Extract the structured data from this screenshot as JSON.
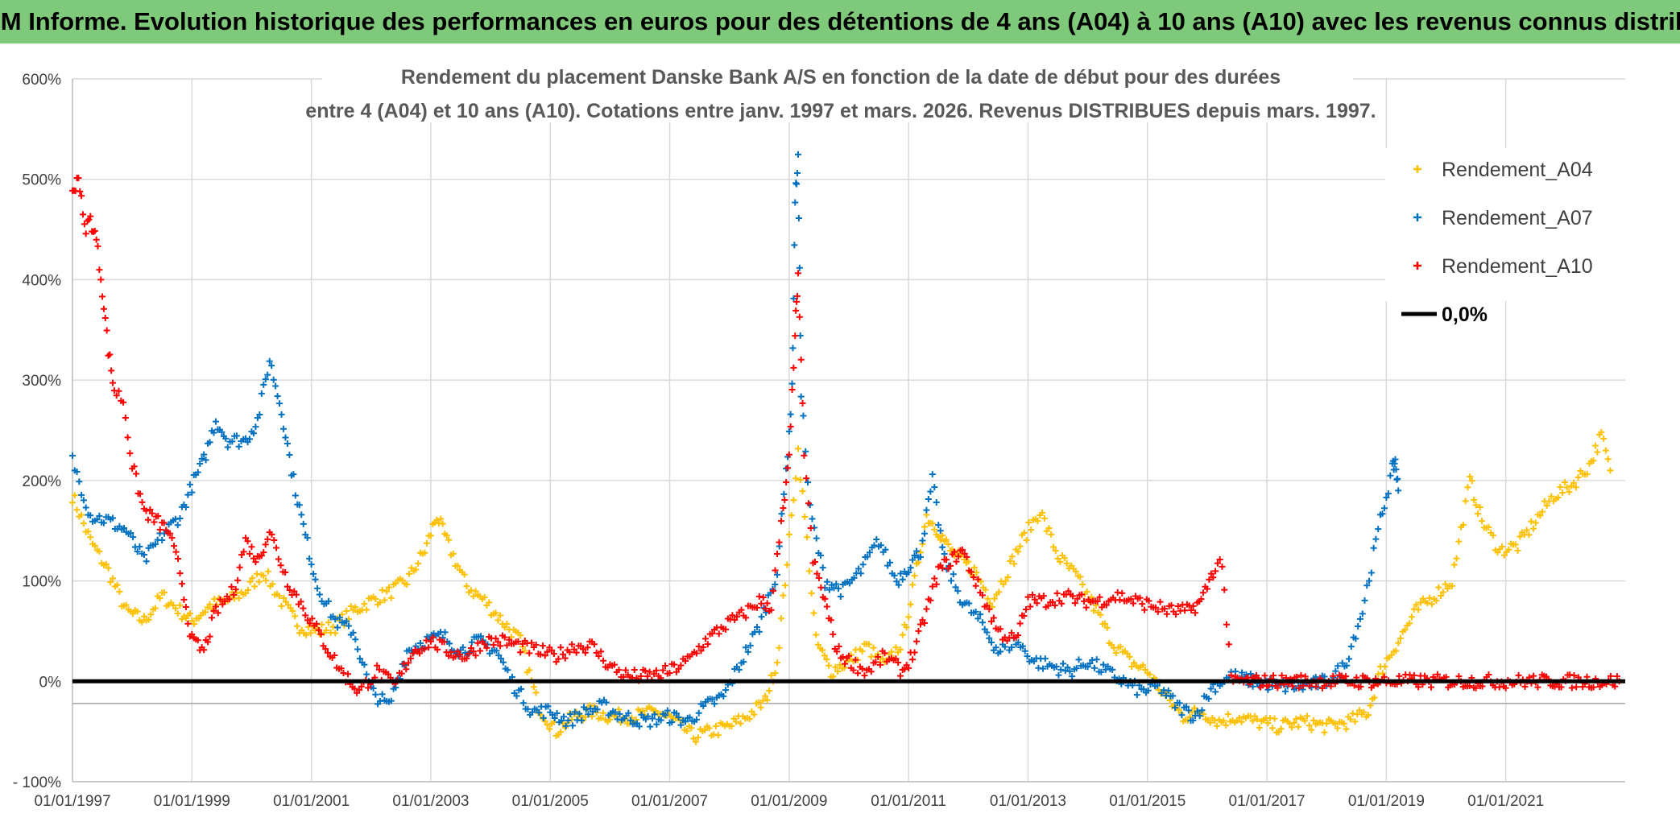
{
  "header": {
    "title": "ADAM Informe. Evolution historique des performances en euros pour des détentions de 4 ans (A04) à 10 ans (A10) avec les revenus connus distribués"
  },
  "chart_data": {
    "type": "scatter",
    "title_line1": "Rendement du placement Danske Bank A/S en fonction de la date de début pour des durées",
    "title_line2": "entre 4 (A04) et 10 ans (A10). Cotations entre janv. 1997 et mars. 2026. Revenus DISTRIBUES depuis mars. 1997.",
    "xlabel": "",
    "ylabel": "",
    "x_range": [
      1997.0,
      2023.0
    ],
    "ylim": [
      -100,
      600
    ],
    "y_ticks": [
      -100,
      0,
      100,
      200,
      300,
      400,
      500,
      600
    ],
    "y_tick_labels": [
      "- 100%",
      "0%",
      "100%",
      "200%",
      "300%",
      "400%",
      "500%",
      "600%"
    ],
    "x_ticks": [
      1997,
      1999,
      2001,
      2003,
      2005,
      2007,
      2009,
      2011,
      2013,
      2015,
      2017,
      2019,
      2021
    ],
    "x_tick_labels": [
      "01/01/1997",
      "01/01/1999",
      "01/01/2001",
      "01/01/2003",
      "01/01/2005",
      "01/01/2007",
      "01/01/2009",
      "01/01/2011",
      "01/01/2013",
      "01/01/2015",
      "01/01/2017",
      "01/01/2019",
      "01/01/2021"
    ],
    "legend_position": "top-right",
    "series": [
      {
        "name": "Rendement_A04",
        "color": "#ffc000",
        "marker": "plus",
        "points": [
          [
            1997.0,
            185
          ],
          [
            1997.3,
            140
          ],
          [
            1997.6,
            110
          ],
          [
            1997.9,
            70
          ],
          [
            1998.2,
            60
          ],
          [
            1998.5,
            85
          ],
          [
            1998.8,
            70
          ],
          [
            1999.0,
            60
          ],
          [
            1999.3,
            75
          ],
          [
            1999.6,
            80
          ],
          [
            1999.9,
            90
          ],
          [
            2000.2,
            110
          ],
          [
            2000.5,
            80
          ],
          [
            2000.8,
            55
          ],
          [
            2001.1,
            50
          ],
          [
            2001.4,
            55
          ],
          [
            2001.7,
            70
          ],
          [
            2002.0,
            80
          ],
          [
            2002.3,
            88
          ],
          [
            2002.6,
            100
          ],
          [
            2002.9,
            130
          ],
          [
            2003.1,
            165
          ],
          [
            2003.3,
            135
          ],
          [
            2003.6,
            95
          ],
          [
            2003.9,
            80
          ],
          [
            2004.2,
            60
          ],
          [
            2004.5,
            40
          ],
          [
            2004.8,
            -25
          ],
          [
            2005.1,
            -50
          ],
          [
            2005.4,
            -35
          ],
          [
            2005.7,
            -30
          ],
          [
            2006.0,
            -35
          ],
          [
            2006.4,
            -35
          ],
          [
            2006.8,
            -30
          ],
          [
            2007.1,
            -40
          ],
          [
            2007.4,
            -55
          ],
          [
            2007.7,
            -50
          ],
          [
            2008.0,
            -45
          ],
          [
            2008.3,
            -35
          ],
          [
            2008.6,
            -20
          ],
          [
            2008.8,
            20
          ],
          [
            2009.0,
            140
          ],
          [
            2009.15,
            230
          ],
          [
            2009.3,
            140
          ],
          [
            2009.45,
            40
          ],
          [
            2009.7,
            10
          ],
          [
            2010.0,
            20
          ],
          [
            2010.3,
            35
          ],
          [
            2010.6,
            15
          ],
          [
            2010.9,
            40
          ],
          [
            2011.1,
            100
          ],
          [
            2011.3,
            165
          ],
          [
            2011.5,
            150
          ],
          [
            2011.7,
            130
          ],
          [
            2011.9,
            120
          ],
          [
            2012.1,
            110
          ],
          [
            2012.4,
            80
          ],
          [
            2012.7,
            115
          ],
          [
            2012.9,
            140
          ],
          [
            2013.2,
            170
          ],
          [
            2013.5,
            125
          ],
          [
            2013.8,
            105
          ],
          [
            2014.1,
            75
          ],
          [
            2014.4,
            40
          ],
          [
            2014.7,
            20
          ],
          [
            2015.0,
            10
          ],
          [
            2015.3,
            -15
          ],
          [
            2015.6,
            -35
          ],
          [
            2015.9,
            -30
          ],
          [
            2016.2,
            -40
          ],
          [
            2016.5,
            -35
          ],
          [
            2016.8,
            -40
          ],
          [
            2017.2,
            -45
          ],
          [
            2017.6,
            -40
          ],
          [
            2018.0,
            -45
          ],
          [
            2018.4,
            -40
          ],
          [
            2018.7,
            -30
          ],
          [
            2018.9,
            10
          ],
          [
            2019.2,
            40
          ],
          [
            2019.5,
            70
          ],
          [
            2019.8,
            85
          ],
          [
            2020.1,
            100
          ],
          [
            2020.4,
            200
          ],
          [
            2020.6,
            160
          ],
          [
            2020.9,
            130
          ],
          [
            2021.2,
            135
          ],
          [
            2021.5,
            160
          ],
          [
            2021.8,
            185
          ],
          [
            2022.1,
            195
          ],
          [
            2022.4,
            215
          ],
          [
            2022.6,
            245
          ],
          [
            2022.75,
            210
          ]
        ]
      },
      {
        "name": "Rendement_A07",
        "color": "#0070c0",
        "marker": "plus",
        "points": [
          [
            1997.0,
            220
          ],
          [
            1997.3,
            165
          ],
          [
            1997.6,
            160
          ],
          [
            1997.9,
            150
          ],
          [
            1998.2,
            120
          ],
          [
            1998.5,
            145
          ],
          [
            1998.8,
            165
          ],
          [
            1999.0,
            195
          ],
          [
            1999.2,
            220
          ],
          [
            1999.4,
            260
          ],
          [
            1999.6,
            240
          ],
          [
            1999.9,
            240
          ],
          [
            2000.1,
            260
          ],
          [
            2000.3,
            320
          ],
          [
            2000.5,
            270
          ],
          [
            2000.7,
            200
          ],
          [
            2000.9,
            145
          ],
          [
            2001.1,
            95
          ],
          [
            2001.4,
            60
          ],
          [
            2001.7,
            50
          ],
          [
            2002.0,
            -10
          ],
          [
            2002.3,
            -25
          ],
          [
            2002.6,
            30
          ],
          [
            2002.9,
            40
          ],
          [
            2003.2,
            45
          ],
          [
            2003.5,
            30
          ],
          [
            2003.8,
            40
          ],
          [
            2004.1,
            30
          ],
          [
            2004.4,
            -5
          ],
          [
            2004.7,
            -30
          ],
          [
            2005.0,
            -30
          ],
          [
            2005.3,
            -40
          ],
          [
            2005.6,
            -30
          ],
          [
            2005.9,
            -25
          ],
          [
            2006.2,
            -35
          ],
          [
            2006.6,
            -40
          ],
          [
            2007.0,
            -35
          ],
          [
            2007.3,
            -40
          ],
          [
            2007.6,
            -25
          ],
          [
            2007.9,
            -15
          ],
          [
            2008.2,
            20
          ],
          [
            2008.5,
            55
          ],
          [
            2008.8,
            110
          ],
          [
            2008.95,
            210
          ],
          [
            2009.05,
            290
          ],
          [
            2009.1,
            480
          ],
          [
            2009.15,
            520
          ],
          [
            2009.2,
            290
          ],
          [
            2009.35,
            170
          ],
          [
            2009.6,
            100
          ],
          [
            2009.9,
            90
          ],
          [
            2010.2,
            110
          ],
          [
            2010.5,
            140
          ],
          [
            2010.8,
            100
          ],
          [
            2011.0,
            115
          ],
          [
            2011.2,
            130
          ],
          [
            2011.4,
            200
          ],
          [
            2011.6,
            120
          ],
          [
            2011.9,
            80
          ],
          [
            2012.2,
            60
          ],
          [
            2012.5,
            30
          ],
          [
            2012.8,
            40
          ],
          [
            2013.1,
            20
          ],
          [
            2013.4,
            15
          ],
          [
            2013.7,
            10
          ],
          [
            2014.0,
            20
          ],
          [
            2014.3,
            10
          ],
          [
            2014.6,
            0
          ],
          [
            2014.9,
            -10
          ],
          [
            2015.2,
            -5
          ],
          [
            2015.5,
            -25
          ],
          [
            2015.8,
            -35
          ],
          [
            2016.1,
            -5
          ],
          [
            2016.4,
            5
          ],
          [
            2016.8,
            0
          ],
          [
            2017.2,
            -5
          ],
          [
            2017.6,
            -5
          ],
          [
            2018.0,
            0
          ],
          [
            2018.3,
            15
          ],
          [
            2018.6,
            70
          ],
          [
            2018.9,
            160
          ],
          [
            2019.1,
            210
          ],
          [
            2019.15,
            220
          ],
          [
            2019.2,
            190
          ]
        ]
      },
      {
        "name": "Rendement_A10",
        "color": "#ff0000",
        "marker": "plus",
        "points": [
          [
            1997.0,
            485
          ],
          [
            1997.1,
            505
          ],
          [
            1997.2,
            450
          ],
          [
            1997.3,
            460
          ],
          [
            1997.4,
            440
          ],
          [
            1997.5,
            390
          ],
          [
            1997.6,
            330
          ],
          [
            1997.7,
            290
          ],
          [
            1997.85,
            280
          ],
          [
            1998.0,
            215
          ],
          [
            1998.2,
            170
          ],
          [
            1998.4,
            160
          ],
          [
            1998.6,
            150
          ],
          [
            1998.8,
            110
          ],
          [
            1999.0,
            40
          ],
          [
            1999.2,
            30
          ],
          [
            1999.4,
            70
          ],
          [
            1999.7,
            90
          ],
          [
            1999.9,
            140
          ],
          [
            2000.1,
            120
          ],
          [
            2000.3,
            150
          ],
          [
            2000.6,
            100
          ],
          [
            2000.9,
            70
          ],
          [
            2001.2,
            40
          ],
          [
            2001.5,
            10
          ],
          [
            2001.8,
            -10
          ],
          [
            2002.1,
            10
          ],
          [
            2002.4,
            -5
          ],
          [
            2002.7,
            30
          ],
          [
            2003.0,
            40
          ],
          [
            2003.3,
            30
          ],
          [
            2003.6,
            25
          ],
          [
            2003.9,
            40
          ],
          [
            2004.2,
            40
          ],
          [
            2004.5,
            35
          ],
          [
            2004.8,
            30
          ],
          [
            2005.1,
            25
          ],
          [
            2005.4,
            35
          ],
          [
            2005.7,
            35
          ],
          [
            2006.0,
            15
          ],
          [
            2006.3,
            5
          ],
          [
            2006.7,
            5
          ],
          [
            2007.0,
            10
          ],
          [
            2007.3,
            20
          ],
          [
            2007.6,
            40
          ],
          [
            2007.9,
            55
          ],
          [
            2008.2,
            65
          ],
          [
            2008.5,
            80
          ],
          [
            2008.7,
            75
          ],
          [
            2008.9,
            170
          ],
          [
            2009.0,
            220
          ],
          [
            2009.1,
            350
          ],
          [
            2009.15,
            400
          ],
          [
            2009.25,
            230
          ],
          [
            2009.4,
            120
          ],
          [
            2009.6,
            80
          ],
          [
            2009.8,
            30
          ],
          [
            2010.0,
            20
          ],
          [
            2010.3,
            10
          ],
          [
            2010.6,
            25
          ],
          [
            2010.9,
            10
          ],
          [
            2011.1,
            30
          ],
          [
            2011.3,
            70
          ],
          [
            2011.5,
            110
          ],
          [
            2011.7,
            120
          ],
          [
            2011.9,
            130
          ],
          [
            2012.2,
            90
          ],
          [
            2012.5,
            50
          ],
          [
            2012.8,
            40
          ],
          [
            2013.0,
            80
          ],
          [
            2013.3,
            80
          ],
          [
            2013.6,
            85
          ],
          [
            2013.9,
            80
          ],
          [
            2014.2,
            80
          ],
          [
            2014.5,
            85
          ],
          [
            2014.8,
            80
          ],
          [
            2015.1,
            75
          ],
          [
            2015.4,
            70
          ],
          [
            2015.7,
            70
          ],
          [
            2015.9,
            80
          ],
          [
            2016.1,
            110
          ],
          [
            2016.25,
            120
          ],
          [
            2016.4,
            0
          ],
          [
            2017.0,
            0
          ],
          [
            2018.0,
            0
          ],
          [
            2019.0,
            0
          ],
          [
            2020.0,
            0
          ],
          [
            2021.0,
            0
          ],
          [
            2022.0,
            0
          ],
          [
            2022.9,
            0
          ]
        ]
      }
    ],
    "reference_line": {
      "name": "0,0%",
      "value": 0,
      "color": "#000000"
    },
    "grid": true
  }
}
